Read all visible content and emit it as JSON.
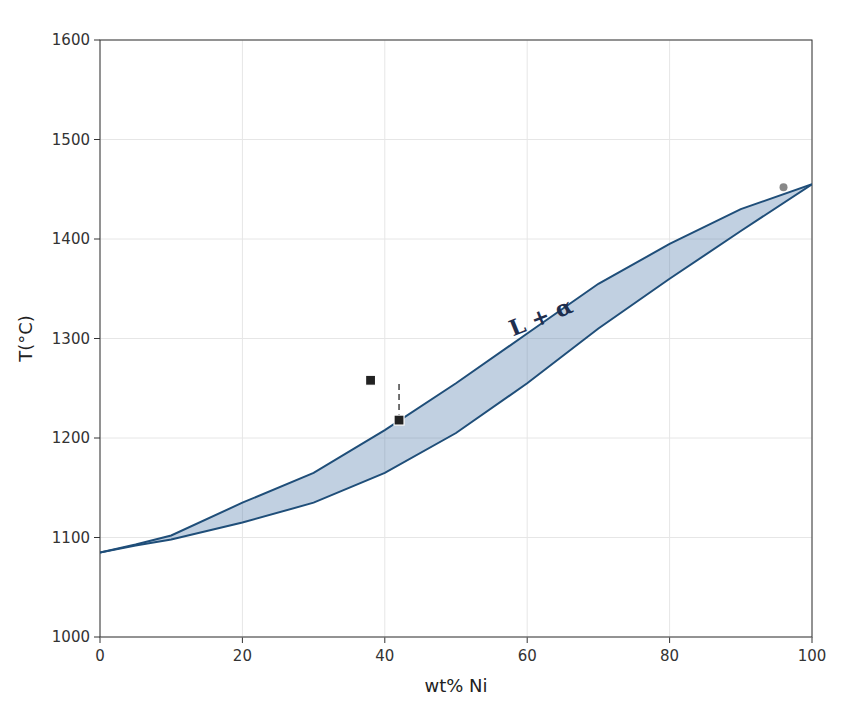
{
  "chart_data": {
    "type": "line",
    "xlabel": "wt% Ni",
    "ylabel": "T(°C)",
    "xlim": [
      0,
      100
    ],
    "ylim": [
      1000,
      1600
    ],
    "xticks": [
      0,
      20,
      40,
      60,
      80,
      100
    ],
    "yticks": [
      1000,
      1100,
      1200,
      1300,
      1400,
      1500,
      1600
    ],
    "series": [
      {
        "type": "line",
        "x": [
          0,
          5,
          10,
          20,
          30,
          40,
          50,
          60,
          70,
          80,
          90,
          100
        ],
        "values": [
          1085,
          1093,
          1102,
          1135,
          1165,
          1208,
          1255,
          1305,
          1355,
          1395,
          1430,
          1455
        ]
      },
      {
        "type": "line",
        "x": [
          0,
          5,
          10,
          20,
          30,
          40,
          50,
          60,
          70,
          80,
          90,
          100
        ],
        "values": [
          1085,
          1092,
          1098,
          1115,
          1135,
          1165,
          1205,
          1255,
          1310,
          1360,
          1408,
          1455
        ]
      },
      {
        "type": "line",
        "line_style": "dashed",
        "x": [
          42,
          42
        ],
        "values": [
          1218,
          1258
        ]
      },
      {
        "type": "scatter",
        "marker": "square",
        "x": [
          38,
          42
        ],
        "values": [
          1258,
          1218
        ]
      },
      {
        "type": "scatter",
        "marker": "circle",
        "x": [
          96
        ],
        "values": [
          1452
        ]
      }
    ],
    "annotations": [
      {
        "text": "L + α",
        "x": 62,
        "y": 1320
      }
    ]
  }
}
